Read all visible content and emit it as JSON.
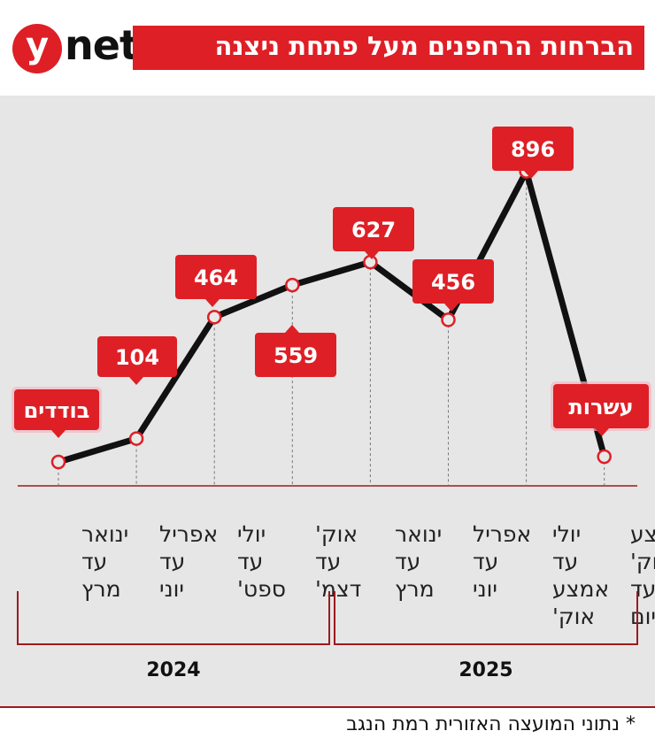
{
  "header": {
    "logo_letter": "y",
    "logo_word": "net",
    "title": "הברחות הרחפנים מעל פתחת ניצנה"
  },
  "colors": {
    "accent": "#de1f26",
    "line": "#111111",
    "panel": "#e6e6e6",
    "bracket": "#9c1a1e"
  },
  "chart_data": {
    "type": "line",
    "categories": [
      [
        "ינואר",
        "עד",
        "מרץ"
      ],
      [
        "אפריל",
        "עד",
        "יוני"
      ],
      [
        "יולי",
        "עד",
        "ספט'"
      ],
      [
        "אוק'",
        "עד",
        "דצמ'"
      ],
      [
        "ינואר",
        "עד",
        "מרץ"
      ],
      [
        "אפריל",
        "עד",
        "יוני"
      ],
      [
        "יולי",
        "עד",
        "אמצע",
        "אוק'"
      ],
      [
        "אמצע",
        "אוק'",
        "עד",
        "היום"
      ]
    ],
    "values": [
      null,
      104,
      464,
      559,
      627,
      456,
      896,
      null
    ],
    "labels": [
      "בודדים",
      "104",
      "464",
      "559",
      "627",
      "456",
      "896",
      "עשרות"
    ],
    "groups": [
      {
        "label": "2024",
        "from": 0,
        "to": 3
      },
      {
        "label": "2025",
        "from": 4,
        "to": 7
      }
    ]
  },
  "footer": {
    "source": "* נתוני המועצה האזורית רמת הנגב"
  }
}
